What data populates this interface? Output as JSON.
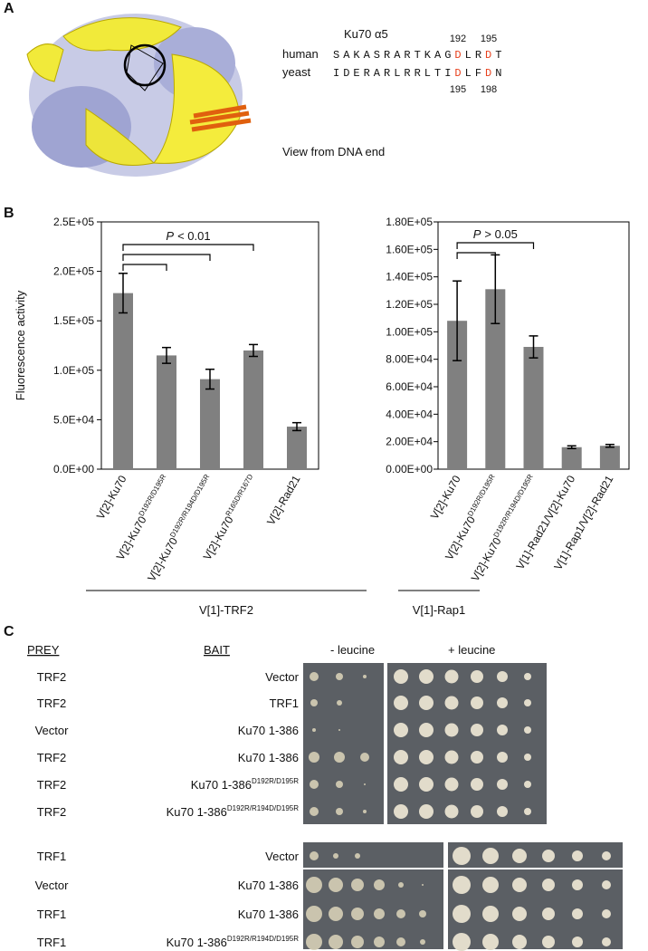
{
  "panel_a": {
    "label": "A",
    "helix_title": "Ku70 α5",
    "human_label": "human",
    "human_sequence": [
      {
        "text": "SAKASRARTKAG"
      },
      {
        "text": "D",
        "highlight": true
      },
      {
        "text": "LR"
      },
      {
        "text": "D",
        "highlight": true
      },
      {
        "text": "T"
      }
    ],
    "human_numbers": [
      "192",
      "195"
    ],
    "yeast_label": "yeast",
    "yeast_sequence": [
      {
        "text": "IDERARLRRLTI"
      },
      {
        "text": "D",
        "highlight": true
      },
      {
        "text": "LF"
      },
      {
        "text": "D",
        "highlight": true
      },
      {
        "text": "N"
      }
    ],
    "yeast_numbers": [
      "195",
      "198"
    ],
    "caption": "View from DNA end"
  },
  "panel_b": {
    "label": "B"
  },
  "chart_data": [
    {
      "type": "bar",
      "ylabel": "Fluorescence activity",
      "categories": [
        "V[2]-Ku70",
        "V[2]-Ku70",
        "V[2]-Ku70",
        "V[2]-Ku70",
        "V[2]-Rad21"
      ],
      "category_superscripts": [
        null,
        "D192R/D195R",
        "D192R/R194D/D195R",
        "R165D/R167D",
        null
      ],
      "values": [
        178000,
        115000,
        91000,
        120000,
        43000
      ],
      "errors": [
        20000,
        8000,
        10000,
        6000,
        4000
      ],
      "color": "#808080",
      "ylim": [
        0,
        250000
      ],
      "yticks": [
        {
          "value": 0,
          "label": "0.0E+00"
        },
        {
          "value": 50000,
          "label": "5.0E+04"
        },
        {
          "value": 100000,
          "label": "1.0E+05"
        },
        {
          "value": 150000,
          "label": "1.5E+05"
        },
        {
          "value": 200000,
          "label": "2.0E+05"
        },
        {
          "value": 250000,
          "label": "2.5E+05"
        }
      ],
      "annotation_italic": "P",
      "annotation": "< 0.01",
      "group_label": "V[1]-TRF2"
    },
    {
      "type": "bar",
      "categories": [
        "V[2]-Ku70",
        "V[2]-Ku70",
        "V[2]-Ku70",
        "V[1]-Rad21/V[2]-Ku70",
        "V[1]-Rap1/V[2]-Rad21"
      ],
      "category_superscripts": [
        null,
        "D192R/D195R",
        "D192R/R194D/D195R",
        null,
        null
      ],
      "values": [
        108000,
        131000,
        89000,
        16000,
        17000
      ],
      "errors": [
        29000,
        25000,
        8000,
        1000,
        1000
      ],
      "color": "#808080",
      "ylim": [
        0,
        180000
      ],
      "yticks": [
        {
          "value": 0,
          "label": "0.00E+00"
        },
        {
          "value": 20000,
          "label": "2.00E+04"
        },
        {
          "value": 40000,
          "label": "4.00E+04"
        },
        {
          "value": 60000,
          "label": "6.00E+04"
        },
        {
          "value": 80000,
          "label": "8.00E+04"
        },
        {
          "value": 100000,
          "label": "1.00E+05"
        },
        {
          "value": 120000,
          "label": "1.20E+05"
        },
        {
          "value": 140000,
          "label": "1.40E+05"
        },
        {
          "value": 160000,
          "label": "1.60E+05"
        },
        {
          "value": 180000,
          "label": "1.80E+05"
        }
      ],
      "annotation_italic": "P",
      "annotation": "> 0.05",
      "group_label": "V[1]-Rap1"
    }
  ],
  "panel_c": {
    "label": "C",
    "prey_header": "PREY",
    "bait_header": "BAIT",
    "minus_leucine": "- leucine",
    "plus_leucine": "+ leucine",
    "rows": [
      {
        "prey": "TRF2",
        "bait": "Vector",
        "bait_superscript": null
      },
      {
        "prey": "TRF2",
        "bait": "TRF1",
        "bait_superscript": null
      },
      {
        "prey": "Vector",
        "bait": "Ku70 1-386",
        "bait_superscript": null
      },
      {
        "prey": "TRF2",
        "bait": "Ku70 1-386",
        "bait_superscript": null
      },
      {
        "prey": "TRF2",
        "bait": "Ku70 1-386",
        "bait_superscript": "D192R/D195R"
      },
      {
        "prey": "TRF2",
        "bait": "Ku70 1-386",
        "bait_superscript": "D192R/R194D/D195R"
      },
      {
        "prey": "TRF1",
        "bait": "Vector",
        "bait_superscript": null
      },
      {
        "prey": "Vector",
        "bait": "Ku70 1-386",
        "bait_superscript": null
      },
      {
        "prey": "TRF1",
        "bait": "Ku70 1-386",
        "bait_superscript": null
      },
      {
        "prey": "TRF1",
        "bait": "Ku70 1-386",
        "bait_superscript": "D192R/R194D/D195R"
      }
    ]
  }
}
